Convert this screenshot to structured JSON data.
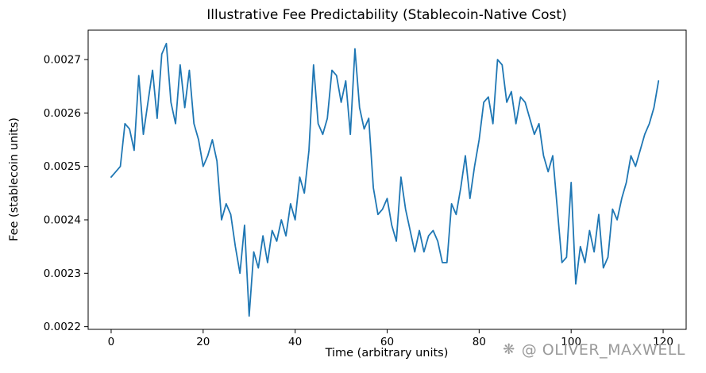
{
  "watermark": {
    "icon": "❋",
    "text": "@ OLIVER_MAXWELL"
  },
  "chart_data": {
    "type": "line",
    "title": "Illustrative Fee Predictability (Stablecoin-Native Cost)",
    "xlabel": "Time (arbitrary units)",
    "ylabel": "Fee (stablecoin units)",
    "x_ticks": [
      0,
      20,
      40,
      60,
      80,
      100,
      120
    ],
    "y_ticks": [
      0.0022,
      0.0023,
      0.0024,
      0.0025,
      0.0026,
      0.0027
    ],
    "xlim": [
      -5,
      125
    ],
    "ylim": [
      0.002195,
      0.002755
    ],
    "grid": false,
    "legend": "none",
    "line_color": "#1f77b4",
    "x_start": 0,
    "x_step": 1,
    "y": [
      0.00248,
      0.00249,
      0.0025,
      0.00258,
      0.00257,
      0.00253,
      0.00267,
      0.00256,
      0.00262,
      0.00268,
      0.00259,
      0.00271,
      0.00273,
      0.00262,
      0.00258,
      0.00269,
      0.00261,
      0.00268,
      0.00258,
      0.00255,
      0.0025,
      0.00252,
      0.00255,
      0.00251,
      0.0024,
      0.00243,
      0.00241,
      0.00235,
      0.0023,
      0.00239,
      0.00222,
      0.00234,
      0.00231,
      0.00237,
      0.00232,
      0.00238,
      0.00236,
      0.0024,
      0.00237,
      0.00243,
      0.0024,
      0.00248,
      0.00245,
      0.00253,
      0.00269,
      0.00258,
      0.00256,
      0.00259,
      0.00268,
      0.00267,
      0.00262,
      0.00266,
      0.00256,
      0.00272,
      0.00261,
      0.00257,
      0.00259,
      0.00246,
      0.00241,
      0.00242,
      0.00244,
      0.00239,
      0.00236,
      0.00248,
      0.00242,
      0.00238,
      0.00234,
      0.00238,
      0.00234,
      0.00237,
      0.00238,
      0.00236,
      0.00232,
      0.00232,
      0.00243,
      0.00241,
      0.00246,
      0.00252,
      0.00244,
      0.0025,
      0.00255,
      0.00262,
      0.00263,
      0.00258,
      0.0027,
      0.00269,
      0.00262,
      0.00264,
      0.00258,
      0.00263,
      0.00262,
      0.00259,
      0.00256,
      0.00258,
      0.00252,
      0.00249,
      0.00252,
      0.00242,
      0.00232,
      0.00233,
      0.00247,
      0.00228,
      0.00235,
      0.00232,
      0.00238,
      0.00234,
      0.00241,
      0.00231,
      0.00233,
      0.00242,
      0.0024,
      0.00244,
      0.00247,
      0.00252,
      0.0025,
      0.00253,
      0.00256,
      0.00258,
      0.00261,
      0.00266
    ]
  }
}
